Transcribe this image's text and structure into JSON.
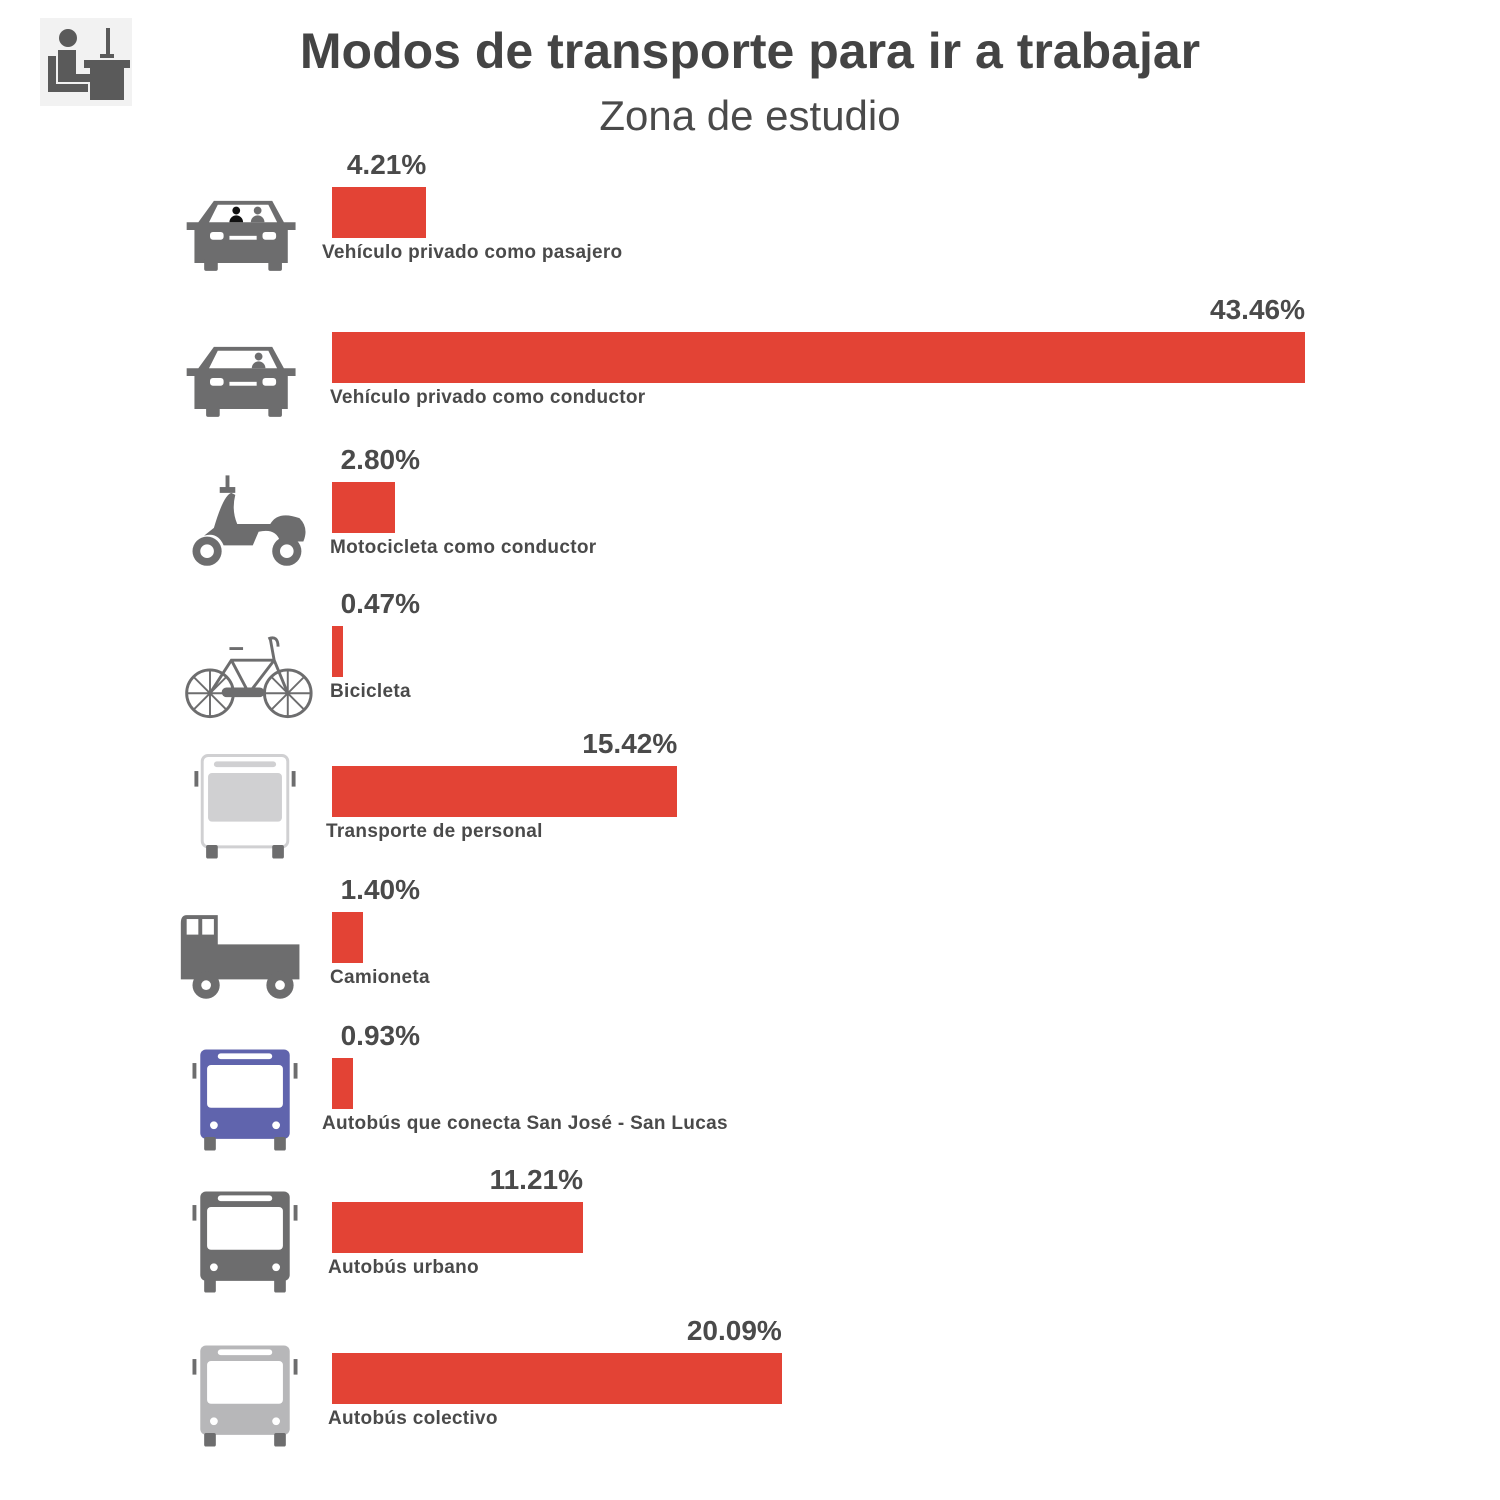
{
  "header": {
    "title": "Modos de transporte para ir a trabajar",
    "subtitle": "Zona de estudio",
    "logo_icon": "office-worker-icon"
  },
  "colors": {
    "bar": "#e34335",
    "icon_gray": "#6d6d6e",
    "icon_purple": "#6064ad",
    "icon_light": "#b7b7b9"
  },
  "chart_data": {
    "type": "bar",
    "orientation": "horizontal",
    "title": "Modos de transporte para ir a trabajar",
    "subtitle": "Zona de estudio",
    "categories": [
      "Vehículo privado como pasajero",
      "Vehículo privado como conductor",
      "Motocicleta como conductor",
      "Bicicleta",
      "Transporte de personal",
      "Camioneta",
      "Autobús que conecta San José  - San Lucas",
      "Autobús urbano",
      "Autobús colectivo"
    ],
    "values": [
      4.21,
      43.46,
      2.8,
      0.47,
      15.42,
      1.4,
      0.93,
      11.21,
      20.09
    ],
    "value_labels": [
      "4.21%",
      "43.46%",
      "2.80%",
      "0.47%",
      "15.42%",
      "1.40%",
      "0.93%",
      "11.21%",
      "20.09%"
    ],
    "icons": [
      "car-passenger-icon",
      "car-driver-icon",
      "scooter-icon",
      "bicycle-icon",
      "personnel-bus-icon",
      "pickup-truck-icon",
      "intercity-bus-icon",
      "urban-bus-icon",
      "collective-bus-icon"
    ],
    "xlim": [
      0,
      43.46
    ],
    "grid": false,
    "legend": "none"
  }
}
